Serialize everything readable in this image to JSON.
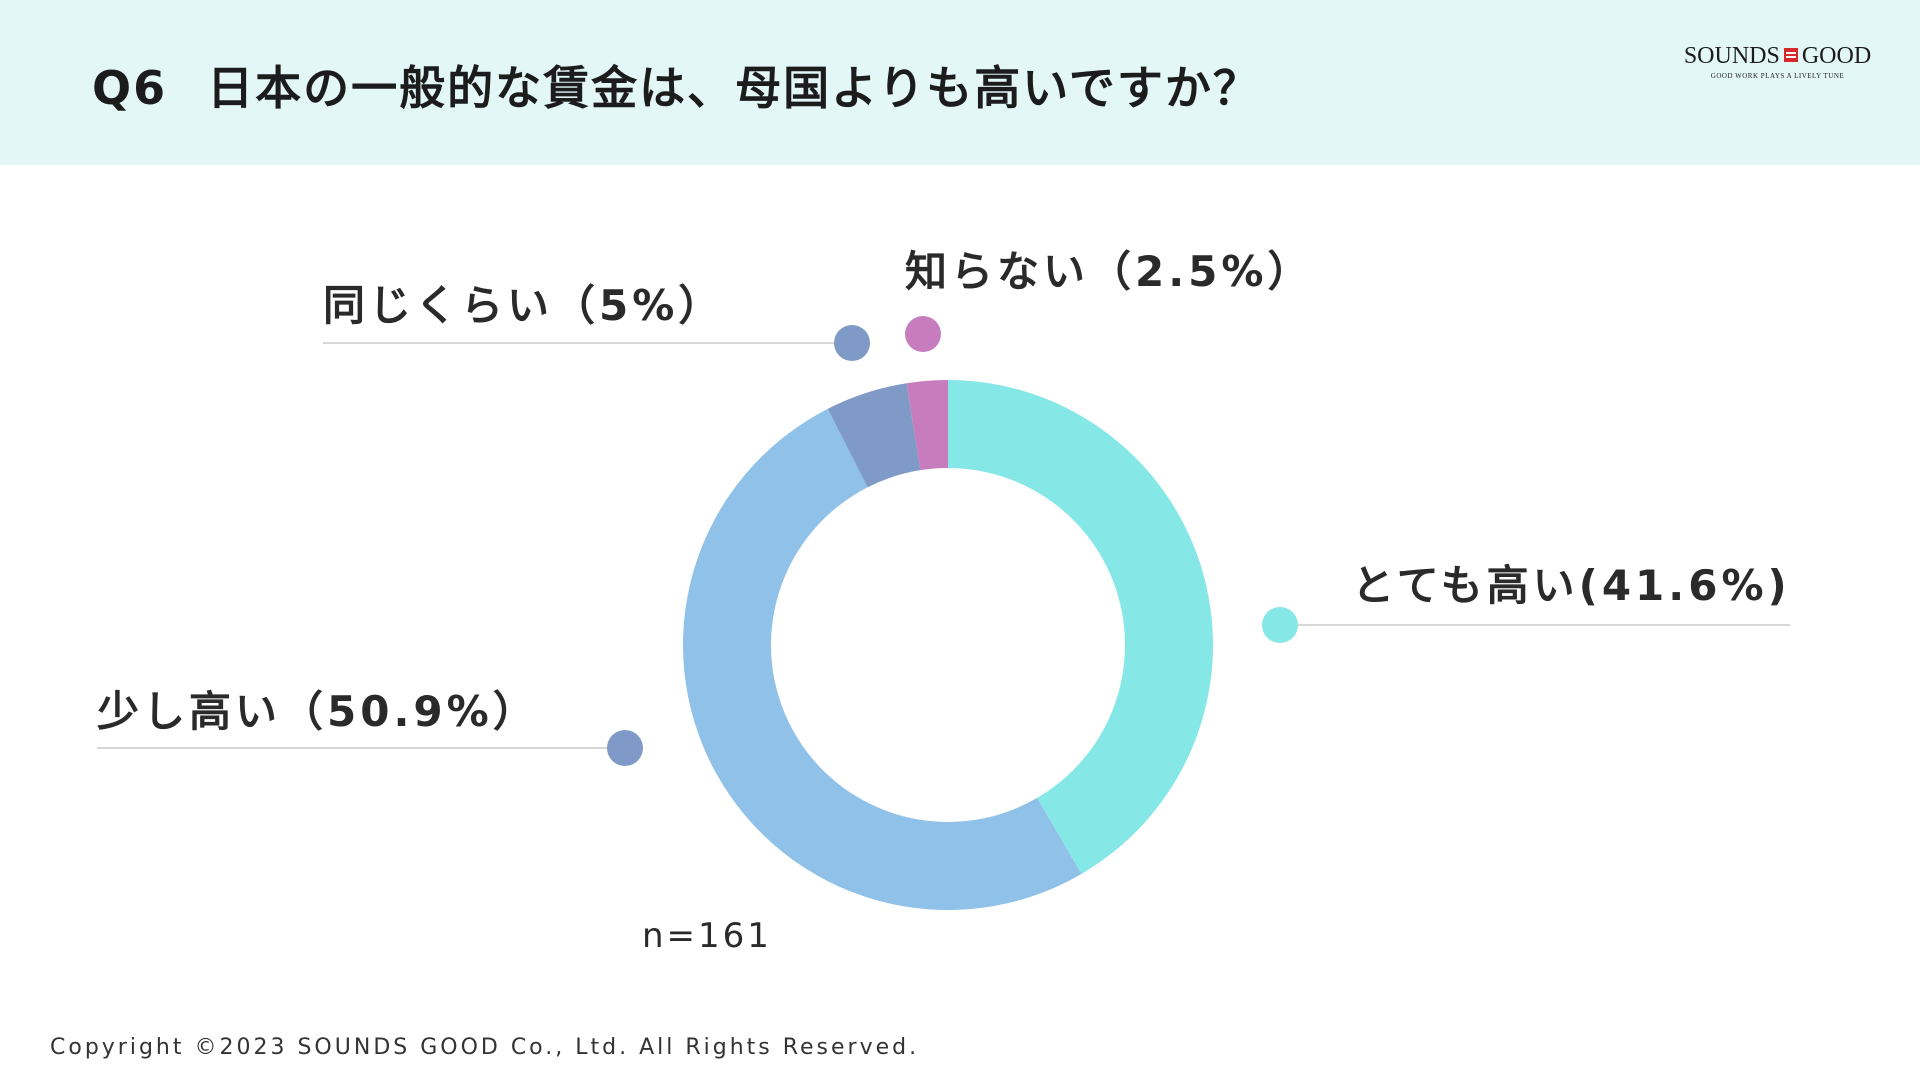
{
  "header": {
    "question_number": "Q6",
    "question_text": "日本の一般的な賃金は、母国よりも高いですか？"
  },
  "logo": {
    "left_word": "SOUNDS",
    "right_word": "GOOD",
    "tagline": "GOOD WORK PLAYS A LIVELY TUNE"
  },
  "chart_data": {
    "type": "pie",
    "donut": true,
    "title": "日本の一般的な賃金は、母国よりも高いですか？",
    "categories": [
      "とても高い",
      "少し高い",
      "同じくらい",
      "知らない"
    ],
    "values": [
      41.6,
      50.9,
      5.0,
      2.5
    ],
    "unit": "%",
    "colors": [
      "#86e8e6",
      "#8fc1e9",
      "#7f9ac6",
      "#c77dbd"
    ],
    "labels": [
      "とても高い(41.6%)",
      "少し高い（50.9%）",
      "同じくらい（5%）",
      "知らない（2.5%）"
    ],
    "sample_size": "n=161"
  },
  "footer": {
    "copyright": "Copyright ©2023 SOUNDS GOOD Co., Ltd. All Rights Reserved."
  }
}
